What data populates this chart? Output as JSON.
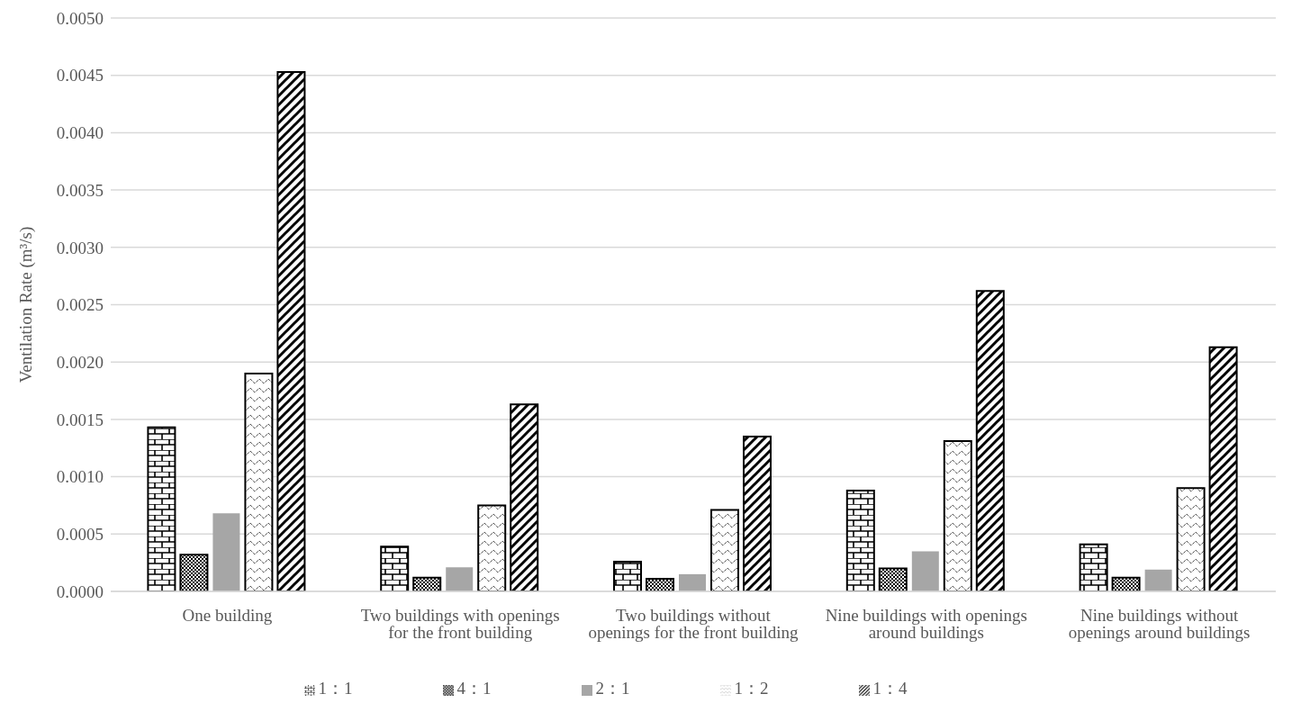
{
  "chart_data": {
    "type": "bar",
    "ylabel": "Ventilation Rate (m³/s)",
    "categories": [
      "One building",
      "Two buildings with openings for the front building",
      "Two buildings without openings for the front building",
      "Nine buildings with openings around buildings",
      "Nine buildings without openings around buildings"
    ],
    "series": [
      {
        "name": "1：1",
        "color": "#000000",
        "values": [
          0.00143,
          0.00039,
          0.00026,
          0.00088,
          0.00041
        ]
      },
      {
        "name": "4：1",
        "color": "#000000",
        "values": [
          0.00032,
          0.00012,
          0.00011,
          0.0002,
          0.00012
        ]
      },
      {
        "name": "2：1",
        "color": "#a6a6a6",
        "values": [
          0.00068,
          0.00021,
          0.00015,
          0.00035,
          0.00019
        ]
      },
      {
        "name": "1：2",
        "color": "#000000",
        "values": [
          0.0019,
          0.00075,
          0.00071,
          0.00131,
          0.0009
        ]
      },
      {
        "name": "1：4",
        "color": "#000000",
        "values": [
          0.00453,
          0.00163,
          0.00135,
          0.00262,
          0.00213
        ]
      }
    ],
    "ylim": [
      0,
      0.005
    ],
    "yticks": [
      {
        "value": 0,
        "label": "0.0000"
      },
      {
        "value": 0.0005,
        "label": "0.0005"
      },
      {
        "value": 0.001,
        "label": "0.0010"
      },
      {
        "value": 0.0015,
        "label": "0.0015"
      },
      {
        "value": 0.002,
        "label": "0.0020"
      },
      {
        "value": 0.0025,
        "label": "0.0025"
      },
      {
        "value": 0.003,
        "label": "0.0030"
      },
      {
        "value": 0.0035,
        "label": "0.0035"
      },
      {
        "value": 0.004,
        "label": "0.0040"
      },
      {
        "value": 0.0045,
        "label": "0.0045"
      },
      {
        "value": 0.005,
        "label": "0.0050"
      }
    ],
    "grid": "y",
    "legend": "bottom"
  }
}
